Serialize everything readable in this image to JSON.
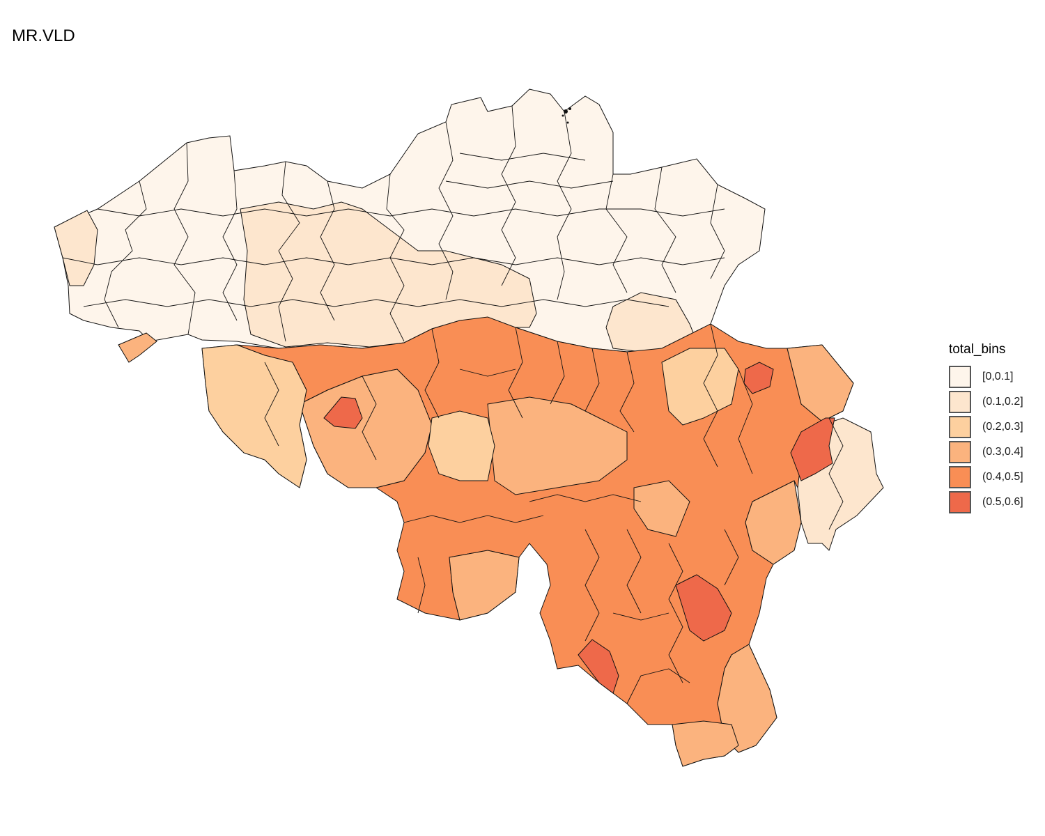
{
  "title": "MR.VLD",
  "legend": {
    "title": "total_bins",
    "items": [
      {
        "label": "[0,0.1]",
        "color": "#FEF5EB"
      },
      {
        "label": "(0.1,0.2]",
        "color": "#FDE6CE"
      },
      {
        "label": "(0.2,0.3]",
        "color": "#FDD09F"
      },
      {
        "label": "(0.3,0.4]",
        "color": "#FBB37E"
      },
      {
        "label": "(0.4,0.5]",
        "color": "#F98E55"
      },
      {
        "label": "(0.5,0.6]",
        "color": "#EE694A"
      }
    ]
  }
}
